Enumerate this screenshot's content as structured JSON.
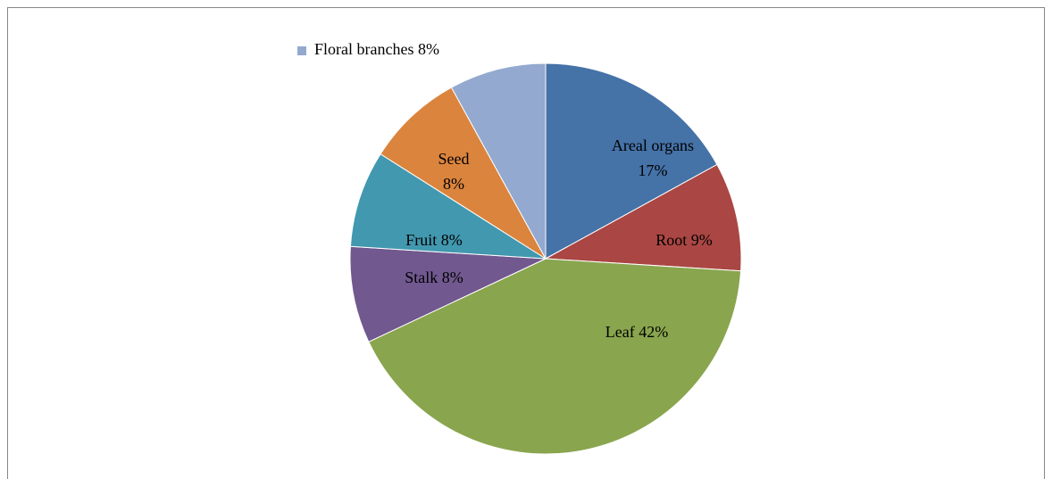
{
  "chart_data": {
    "type": "pie",
    "categories": [
      "Areal organs",
      "Root",
      "Leaf",
      "Stalk",
      "Fruit",
      "Seed",
      "Floral branches"
    ],
    "values": [
      17,
      9,
      42,
      8,
      8,
      8,
      8
    ],
    "value_labels": [
      "17%",
      "9%",
      "42%",
      "8%",
      "8%",
      "8%",
      "8%"
    ],
    "colors": [
      "#4572a7",
      "#aa4643",
      "#89a54e",
      "#71588f",
      "#4198af",
      "#db843d",
      "#93a9cf"
    ],
    "legend": "top"
  }
}
